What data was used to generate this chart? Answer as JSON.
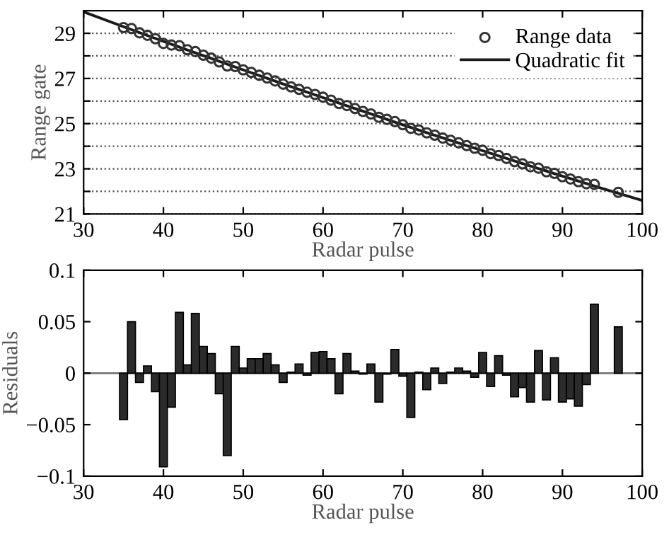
{
  "chart_data": [
    {
      "type": "scatter",
      "xlabel": "Radar pulse",
      "ylabel": "Range gate",
      "xlim": [
        30,
        100
      ],
      "ylim": [
        21,
        30
      ],
      "xticks": [
        30,
        40,
        50,
        60,
        70,
        80,
        90,
        100
      ],
      "yticks": [
        21,
        {
          "value": 22,
          "label": null
        },
        23,
        {
          "value": 24,
          "label": null
        },
        25,
        {
          "value": 26,
          "label": null
        },
        27,
        {
          "value": 28,
          "label": null
        },
        29
      ],
      "grid": "y",
      "legend": "top right",
      "series": [
        {
          "name": "Range data",
          "type": "scatter",
          "color": "#333333",
          "marker": "circle",
          "x": [
            35,
            36,
            37,
            38,
            39,
            40,
            41,
            42,
            43,
            44,
            45,
            46,
            47,
            48,
            49,
            50,
            51,
            52,
            53,
            54,
            55,
            56,
            57,
            58,
            59,
            60,
            61,
            62,
            63,
            64,
            65,
            66,
            67,
            68,
            69,
            70,
            71,
            72,
            73,
            74,
            75,
            76,
            77,
            78,
            79,
            80,
            81,
            82,
            83,
            84,
            85,
            86,
            87,
            88,
            89,
            90,
            91,
            92,
            93,
            94,
            97
          ],
          "values": [
            29.25,
            29.21,
            29.02,
            28.91,
            28.76,
            28.55,
            28.48,
            28.45,
            28.27,
            28.19,
            28.03,
            27.9,
            27.73,
            27.55,
            27.53,
            27.38,
            27.27,
            27.14,
            27.02,
            26.89,
            26.75,
            26.63,
            26.52,
            26.39,
            26.29,
            26.17,
            26.04,
            25.89,
            25.8,
            25.67,
            25.54,
            25.43,
            25.28,
            25.19,
            25.09,
            24.95,
            24.79,
            24.72,
            24.59,
            24.49,
            24.36,
            24.26,
            24.15,
            24.03,
            23.91,
            23.82,
            23.67,
            23.59,
            23.46,
            23.32,
            23.22,
            23.09,
            23.03,
            22.87,
            22.8,
            22.65,
            22.55,
            22.43,
            22.34,
            22.31,
            21.96
          ]
        },
        {
          "name": "Quadratic fit",
          "type": "line",
          "color": "#1a1a1a",
          "line_style": "solid",
          "x": [
            30,
            35,
            40,
            45,
            50,
            55,
            60,
            65,
            70,
            75,
            80,
            85,
            90,
            95,
            100
          ],
          "values": [
            29.95,
            29.29,
            28.64,
            28.01,
            27.38,
            26.76,
            26.15,
            25.55,
            24.95,
            24.37,
            23.8,
            23.23,
            22.68,
            22.13,
            21.6
          ]
        }
      ]
    },
    {
      "type": "bar",
      "xlabel": "Radar pulse",
      "ylabel": "Residuals",
      "xlim": [
        30,
        100
      ],
      "ylim": [
        -0.1,
        0.1
      ],
      "xticks": [
        30,
        40,
        50,
        60,
        70,
        80,
        90,
        100
      ],
      "yticks": [
        {
          "value": -0.1,
          "label": "−0.1"
        },
        {
          "value": -0.05,
          "label": "−0.05"
        },
        0,
        0.05,
        0.1
      ],
      "ref_lines": [
        {
          "axis": "y",
          "value": 0,
          "color": "#777777"
        }
      ],
      "series": [
        {
          "color": "#2b2b2b",
          "x": [
            35,
            36,
            37,
            38,
            39,
            40,
            41,
            42,
            43,
            44,
            45,
            46,
            47,
            48,
            49,
            50,
            51,
            52,
            53,
            54,
            55,
            56,
            57,
            58,
            59,
            60,
            61,
            62,
            63,
            64,
            65,
            66,
            67,
            68,
            69,
            70,
            71,
            72,
            73,
            74,
            75,
            76,
            77,
            78,
            79,
            80,
            81,
            82,
            83,
            84,
            85,
            86,
            87,
            88,
            89,
            90,
            91,
            92,
            93,
            94,
            97
          ],
          "values": [
            -0.045,
            0.05,
            -0.009,
            0.007,
            -0.018,
            -0.091,
            -0.033,
            0.059,
            0.008,
            0.058,
            0.026,
            0.019,
            -0.02,
            -0.08,
            0.026,
            0.005,
            0.014,
            0.014,
            0.019,
            0.008,
            -0.009,
            0.001,
            0.009,
            -0.002,
            0.02,
            0.021,
            0.014,
            -0.02,
            0.019,
            0.002,
            -0.001,
            0.009,
            -0.028,
            -0.001,
            0.023,
            -0.003,
            -0.043,
            0.001,
            -0.016,
            0.005,
            -0.01,
            0.001,
            0.005,
            0.002,
            -0.004,
            0.02,
            -0.013,
            0.017,
            -0.002,
            -0.023,
            -0.014,
            -0.028,
            0.022,
            -0.026,
            0.015,
            -0.028,
            -0.025,
            -0.032,
            -0.011,
            0.067,
            0.045
          ]
        }
      ]
    }
  ]
}
